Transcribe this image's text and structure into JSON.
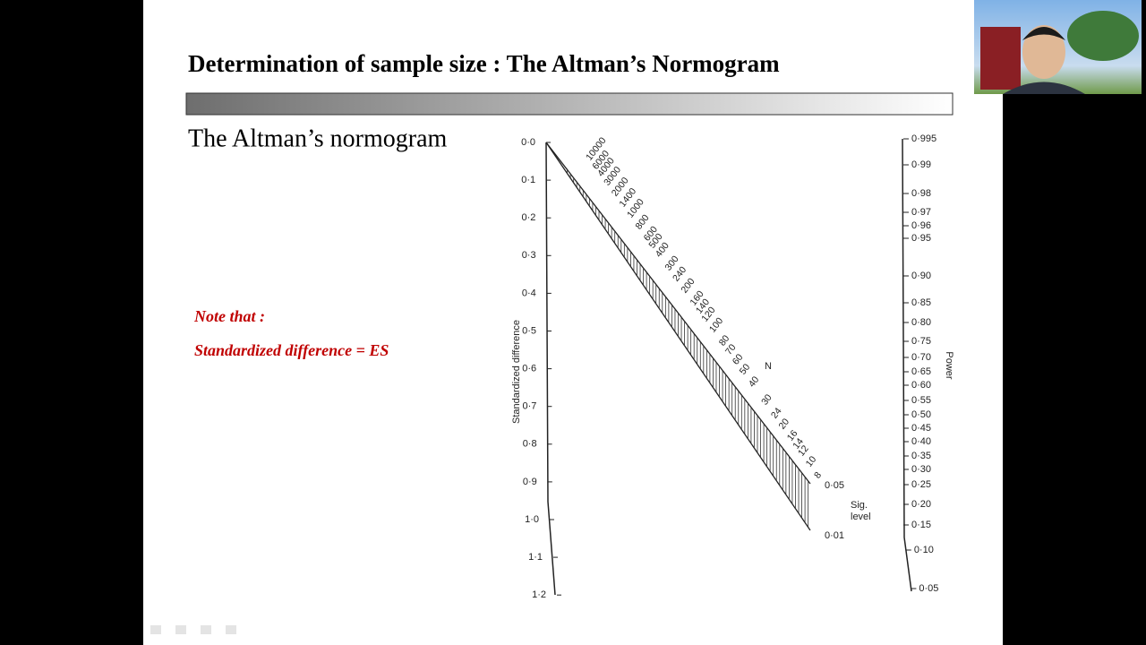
{
  "slide": {
    "title": "Determination of sample size : The Altman’s Normogram",
    "subtitle": "The Altman’s normogram",
    "notes": [
      "Note that :",
      "Standardized difference = ES"
    ],
    "nomogram": {
      "left_axis": {
        "label": "Standardized difference",
        "ticks": [
          "0·0",
          "0·1",
          "0·2",
          "0·3",
          "0·4",
          "0·5",
          "0·6",
          "0·7",
          "0·8",
          "0·9",
          "1·0",
          "1·1",
          "1·2"
        ]
      },
      "n_scale": {
        "label": "N",
        "ticks": [
          "10000",
          "6000",
          "4000",
          "3000",
          "2000",
          "1400",
          "1000",
          "800",
          "600",
          "500",
          "400",
          "300",
          "240",
          "200",
          "160",
          "140",
          "120",
          "100",
          "80",
          "70",
          "60",
          "50",
          "40",
          "30",
          "24",
          "20",
          "16",
          "14",
          "12",
          "10",
          "8"
        ]
      },
      "sig_level": {
        "label_lines": [
          "Sig.",
          "level"
        ],
        "values": [
          "0·05",
          "0·01"
        ]
      },
      "right_axis": {
        "label": "Power",
        "ticks": [
          "0·995",
          "0·99",
          "0·98",
          "0·97",
          "0·96",
          "0·95",
          "0·90",
          "0·85",
          "0·80",
          "0·75",
          "0·70",
          "0·65",
          "0·60",
          "0·55",
          "0·50",
          "0·45",
          "0·40",
          "0·35",
          "0·30",
          "0·25",
          "0·20",
          "0·15",
          "0·10",
          "0·05"
        ]
      }
    }
  }
}
